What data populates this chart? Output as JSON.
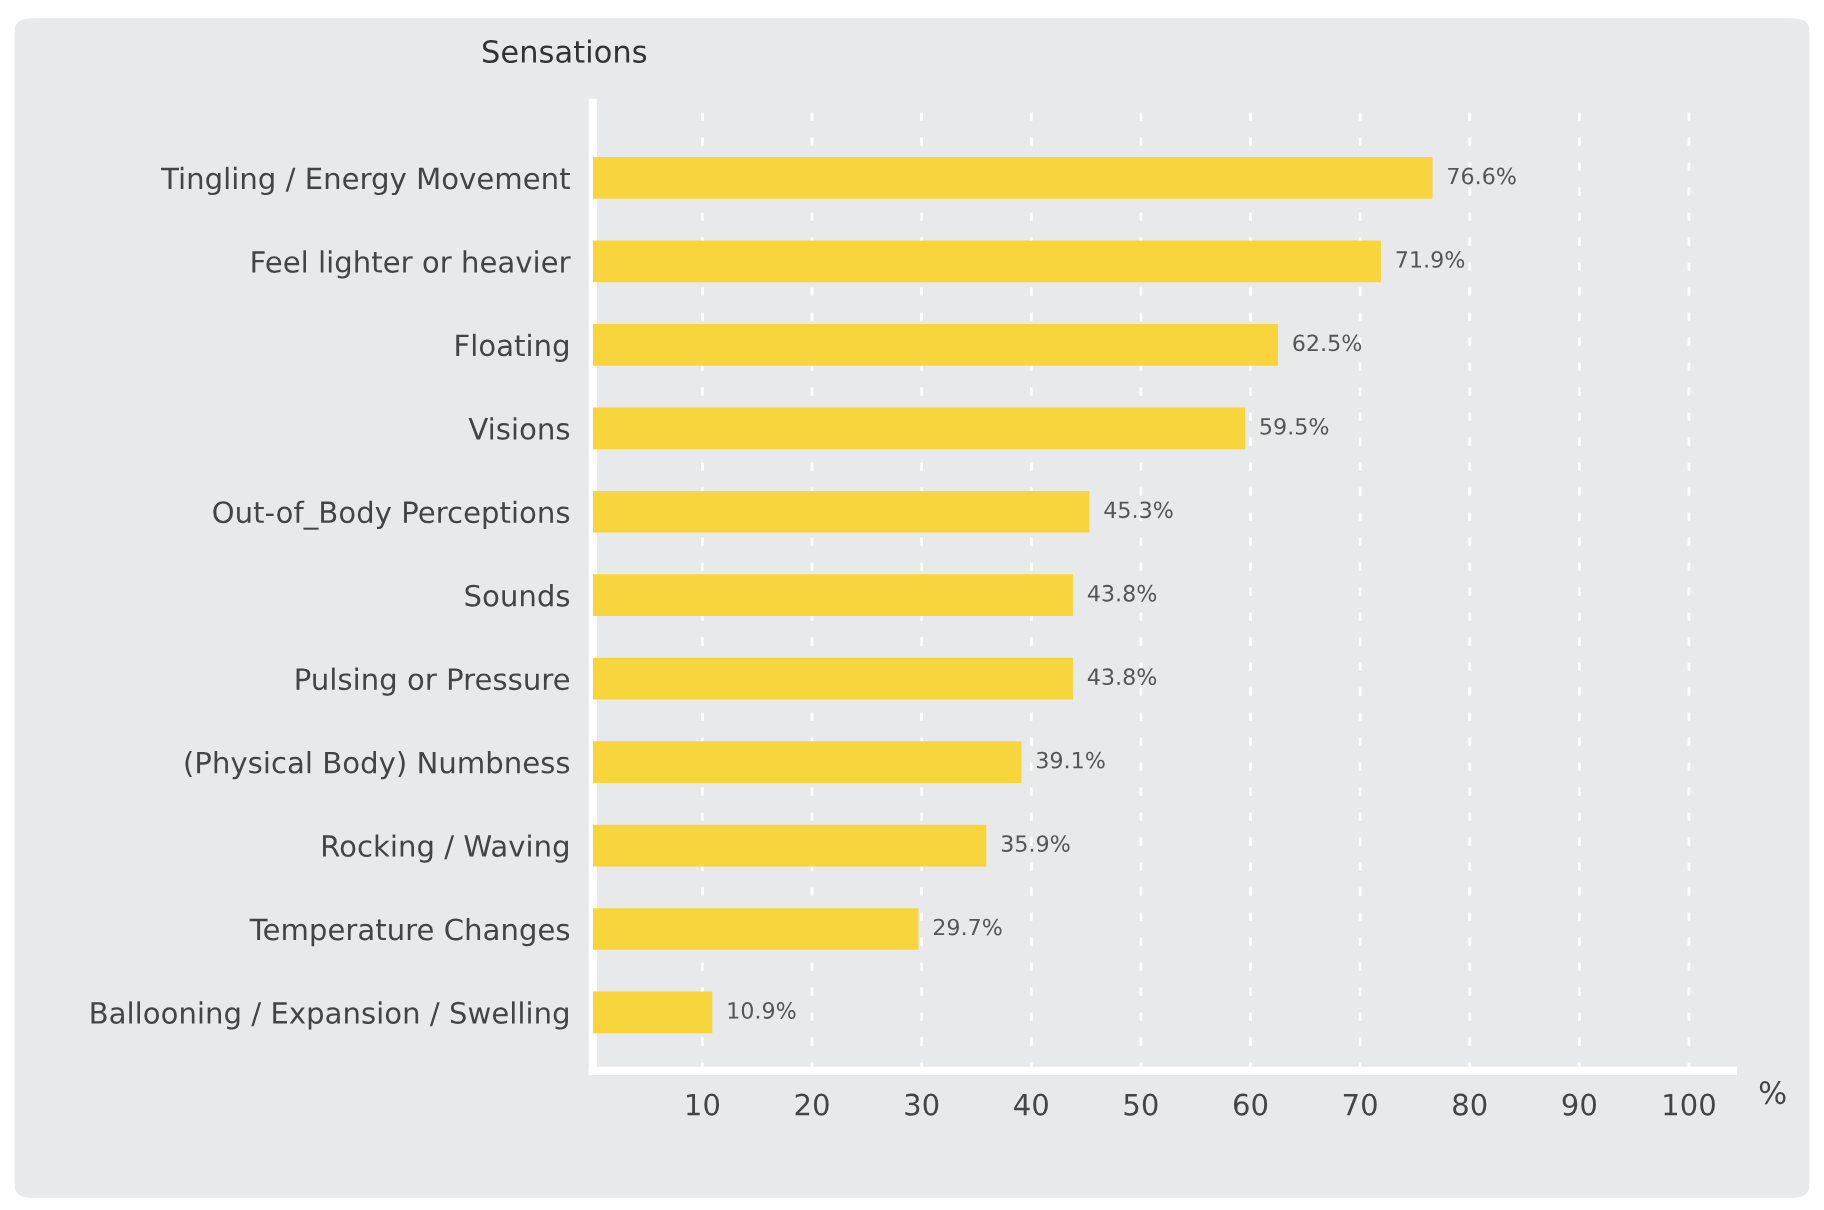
{
  "chart_data": {
    "type": "bar",
    "orientation": "horizontal",
    "ylabel": "Sensations",
    "xlabel": "%",
    "categories": [
      "Tingling / Energy Movement",
      "Feel lighter or heavier",
      "Floating",
      "Visions",
      "Out-of_Body Perceptions",
      "Sounds",
      "Pulsing or Pressure",
      "(Physical Body) Numbness",
      "Rocking / Waving",
      "Temperature Changes",
      "Ballooning / Expansion / Swelling"
    ],
    "values": [
      76.6,
      71.9,
      62.5,
      59.5,
      45.3,
      43.8,
      43.8,
      39.1,
      35.9,
      29.7,
      10.9
    ],
    "value_labels": [
      "76.6%",
      "71.9%",
      "62.5%",
      "59.5%",
      "45.3%",
      "43.8%",
      "43.8%",
      "39.1%",
      "35.9%",
      "29.7%",
      "10.9%"
    ],
    "color": "#f8d53c",
    "xlim": [
      0,
      104
    ],
    "xticks": [
      10,
      20,
      30,
      40,
      50,
      60,
      70,
      80,
      90,
      100
    ],
    "grid": "x",
    "legend": false
  }
}
